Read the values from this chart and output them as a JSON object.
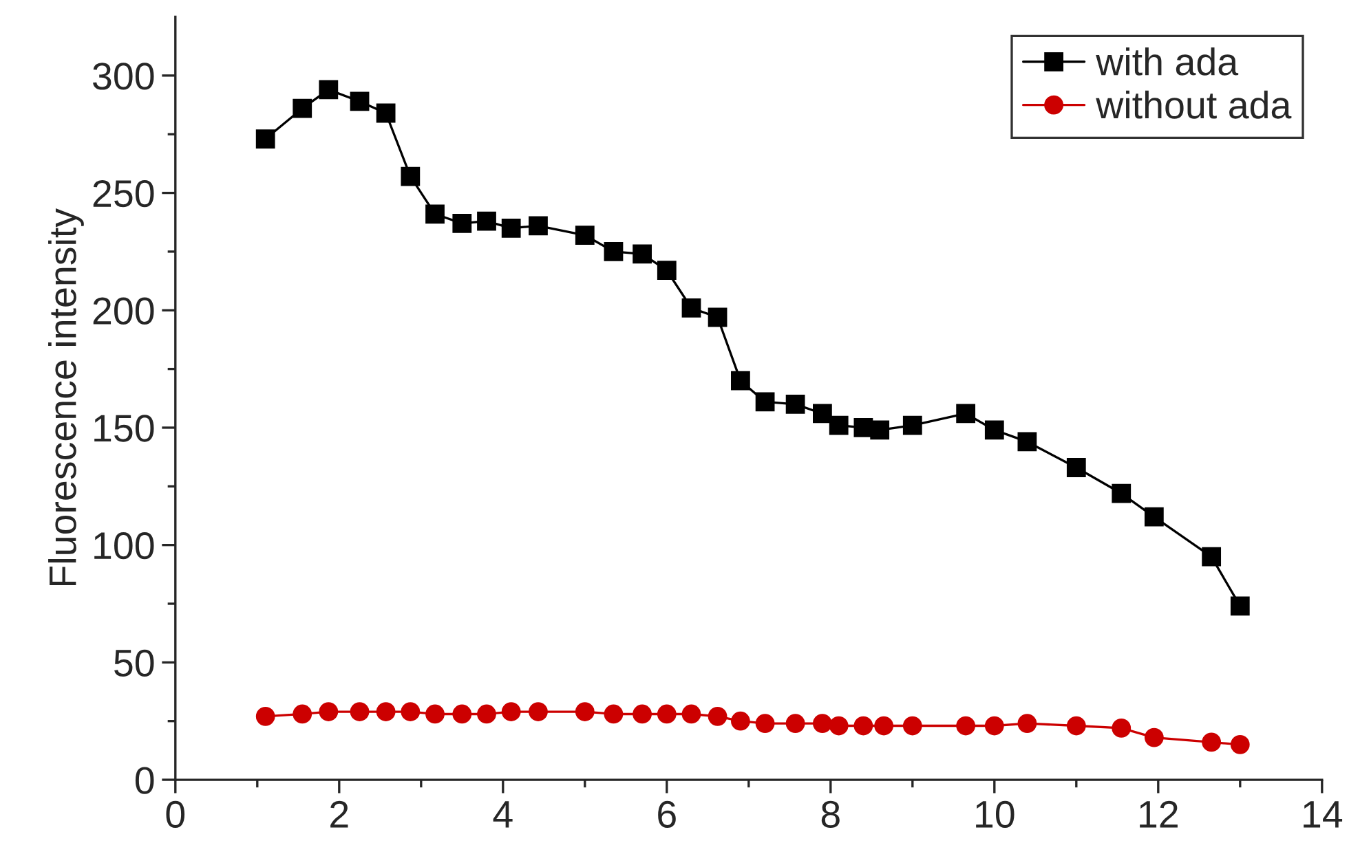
{
  "chart_data": {
    "type": "line",
    "ylabel": "Fluorescence intensity",
    "xlim": [
      0,
      14
    ],
    "xticks": [
      0,
      2,
      4,
      6,
      8,
      10,
      12,
      14
    ],
    "ylim": [
      0,
      325
    ],
    "yticks": [
      0,
      50,
      100,
      150,
      200,
      250,
      300
    ],
    "legend": "top right",
    "grid": false,
    "series": [
      {
        "name": "with ada",
        "color": "#000000",
        "marker": "square",
        "x": [
          1.1,
          1.55,
          1.87,
          2.25,
          2.57,
          2.87,
          3.17,
          3.5,
          3.8,
          4.1,
          4.43,
          5.0,
          5.35,
          5.7,
          6.0,
          6.3,
          6.62,
          6.9,
          7.2,
          7.57,
          7.9,
          8.1,
          8.4,
          8.6,
          9.0,
          9.65,
          10.0,
          10.4,
          11.0,
          11.55,
          11.95,
          12.65,
          13.0
        ],
        "values": [
          273,
          286,
          294,
          289,
          284,
          257,
          241,
          237,
          238,
          235,
          236,
          232,
          225,
          224,
          217,
          201,
          197,
          170,
          161,
          160,
          156,
          151,
          150,
          149,
          151,
          156,
          149,
          144,
          133,
          122,
          112,
          95,
          74
        ]
      },
      {
        "name": "without ada",
        "color": "#cc0000",
        "marker": "circle",
        "x": [
          1.1,
          1.55,
          1.87,
          2.25,
          2.57,
          2.87,
          3.17,
          3.5,
          3.8,
          4.1,
          4.43,
          5.0,
          5.35,
          5.7,
          6.0,
          6.3,
          6.62,
          6.9,
          7.2,
          7.57,
          7.9,
          8.1,
          8.4,
          8.65,
          9.0,
          9.65,
          10.0,
          10.4,
          11.0,
          11.55,
          11.95,
          12.65,
          13.0
        ],
        "values": [
          27,
          28,
          29,
          29,
          29,
          29,
          28,
          28,
          28,
          29,
          29,
          29,
          28,
          28,
          28,
          28,
          27,
          25,
          24,
          24,
          24,
          23,
          23,
          23,
          23,
          23,
          23,
          24,
          23,
          22,
          18,
          16,
          15
        ]
      }
    ]
  }
}
